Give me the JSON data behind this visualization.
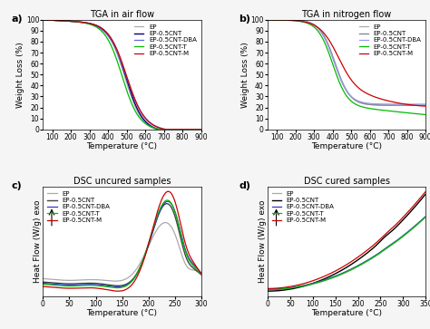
{
  "tga_air": {
    "title": "TGA in air flow",
    "xlabel": "Temperature (°C)",
    "ylabel": "Weight Loss (%)",
    "xlim": [
      50,
      900
    ],
    "ylim": [
      0,
      100
    ],
    "xticks": [
      100,
      200,
      300,
      400,
      500,
      600,
      700,
      800,
      900
    ],
    "yticks": [
      0,
      10,
      20,
      30,
      40,
      50,
      60,
      70,
      80,
      90,
      100
    ],
    "series": [
      {
        "label": "EP",
        "color": "#aaaaaa",
        "lw": 0.9
      },
      {
        "label": "EP-0.5CNT",
        "color": "#000080",
        "lw": 1.0
      },
      {
        "label": "EP-0.5CNT-DBA",
        "color": "#6666dd",
        "lw": 0.9
      },
      {
        "label": "EP-0.5CNT-T",
        "color": "#00bb00",
        "lw": 0.9
      },
      {
        "label": "EP-0.5CNT-M",
        "color": "#cc0000",
        "lw": 0.9
      }
    ]
  },
  "tga_n2": {
    "title": "TGA in nitrogen flow",
    "xlabel": "Temperature (°C)",
    "ylabel": "Weight Loss (%)",
    "xlim": [
      50,
      900
    ],
    "ylim": [
      0,
      100
    ],
    "xticks": [
      100,
      200,
      300,
      400,
      500,
      600,
      700,
      800,
      900
    ],
    "yticks": [
      0,
      10,
      20,
      30,
      40,
      50,
      60,
      70,
      80,
      90,
      100
    ],
    "series": [
      {
        "label": "EP",
        "color": "#aaaaaa",
        "lw": 0.9
      },
      {
        "label": "EP-0.5CNT",
        "color": "#888888",
        "lw": 1.0
      },
      {
        "label": "EP-0.5CNT-DBA",
        "color": "#9999ee",
        "lw": 0.9
      },
      {
        "label": "EP-0.5CNT-T",
        "color": "#00bb00",
        "lw": 0.9
      },
      {
        "label": "EP-0.5CNT-M",
        "color": "#cc0000",
        "lw": 0.9
      }
    ]
  },
  "dsc_uncured": {
    "title": "DSC uncured samples",
    "xlabel": "Temperature (°C)",
    "ylabel": "Heat Flow (W/g) exo",
    "xlim": [
      0,
      300
    ],
    "xticks": [
      0,
      50,
      100,
      150,
      200,
      250,
      300
    ],
    "series": [
      {
        "label": "EP",
        "color": "#aaaaaa",
        "lw": 0.9
      },
      {
        "label": "EP-0.5CNT",
        "color": "#444444",
        "lw": 1.0
      },
      {
        "label": "EP-0.5CNT-DBA",
        "color": "#3333cc",
        "lw": 0.9
      },
      {
        "label": "EP-0.5CNT-T",
        "color": "#00bb00",
        "lw": 0.9
      },
      {
        "label": "EP-0.5CNT-M",
        "color": "#cc0000",
        "lw": 0.9
      }
    ]
  },
  "dsc_cured": {
    "title": "DSC cured samples",
    "xlabel": "Temperature (°C)",
    "ylabel": "Heat Flow (W/g) exo",
    "xlim": [
      0,
      350
    ],
    "xticks": [
      0,
      50,
      100,
      150,
      200,
      250,
      300,
      350
    ],
    "series": [
      {
        "label": "EP",
        "color": "#aaaaaa",
        "lw": 0.9
      },
      {
        "label": "EP-0.5CNT",
        "color": "#000000",
        "lw": 1.0
      },
      {
        "label": "EP-0.5CNT-DBA",
        "color": "#3333cc",
        "lw": 0.9
      },
      {
        "label": "EP-0.5CNT-T",
        "color": "#00bb00",
        "lw": 0.9
      },
      {
        "label": "EP-0.5CNT-M",
        "color": "#cc0000",
        "lw": 0.9
      }
    ]
  },
  "panel_labels": [
    "a)",
    "b)",
    "c)",
    "d)"
  ],
  "legend_fontsize": 5.0,
  "axis_fontsize": 6.5,
  "tick_fontsize": 5.5,
  "title_fontsize": 7.0,
  "background_color": "#f5f5f5"
}
